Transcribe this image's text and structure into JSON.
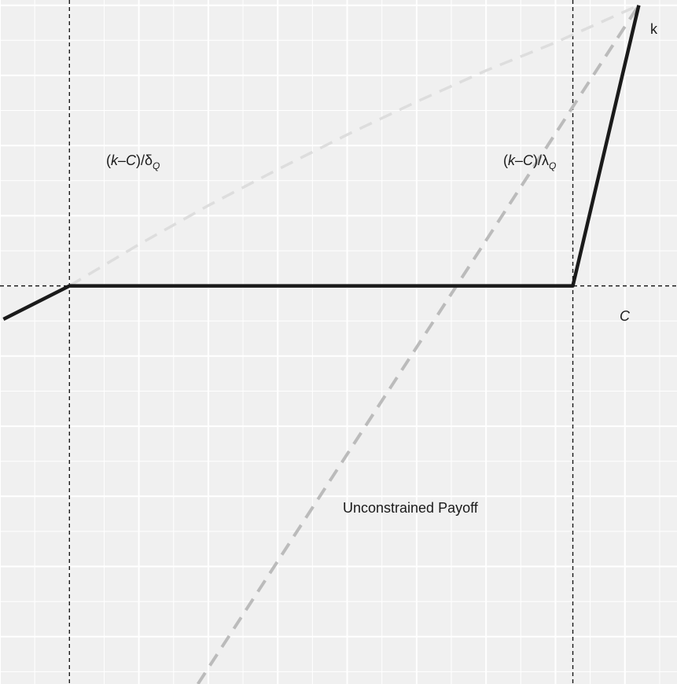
{
  "chart_data": {
    "type": "line",
    "title": "",
    "xlabel": "",
    "ylabel": "",
    "grid": true,
    "xlim": [
      -0.2,
      1.75
    ],
    "ylim": [
      -1.135,
      0.815
    ],
    "reference_lines": {
      "vertical": [
        {
          "name": "delta-ref",
          "x": 0
        },
        {
          "name": "lambda-ref",
          "x": 1.45
        }
      ],
      "horizontal": [
        {
          "name": "c-ref",
          "y": 0
        }
      ]
    },
    "series": [
      {
        "style": "solid",
        "color": "#1a1a1a",
        "points": [
          [
            -0.19,
            -0.095
          ],
          [
            0,
            0
          ],
          [
            1.45,
            0
          ],
          [
            1.64,
            0.8
          ]
        ]
      },
      {
        "style": "dashed",
        "color": "#bbbbbb",
        "points": [
          [
            0.37,
            -1.135
          ],
          [
            1.64,
            0.8
          ]
        ]
      },
      {
        "style": "dashed-curve",
        "color": "#dddddd",
        "points": [
          [
            0,
            0
          ],
          [
            0.2,
            0.118
          ],
          [
            0.4,
            0.229
          ],
          [
            0.6,
            0.332
          ],
          [
            0.8,
            0.431
          ],
          [
            1.0,
            0.525
          ],
          [
            1.2,
            0.614
          ],
          [
            1.4,
            0.694
          ],
          [
            1.64,
            0.8
          ]
        ]
      }
    ],
    "annotations": {
      "delta": {
        "prefix": "(",
        "k": "k",
        "dash": "–",
        "c": "C",
        "close": ")/",
        "sym": "δ",
        "sub": "Q"
      },
      "lambda": {
        "prefix": "(",
        "k": "k",
        "dash": "–",
        "c": "C",
        "close": ")/",
        "sym": "λ",
        "sub": "Q"
      },
      "c_label": "C",
      "k_label": "k",
      "unconstrained": "Unconstrained Payoff"
    }
  }
}
